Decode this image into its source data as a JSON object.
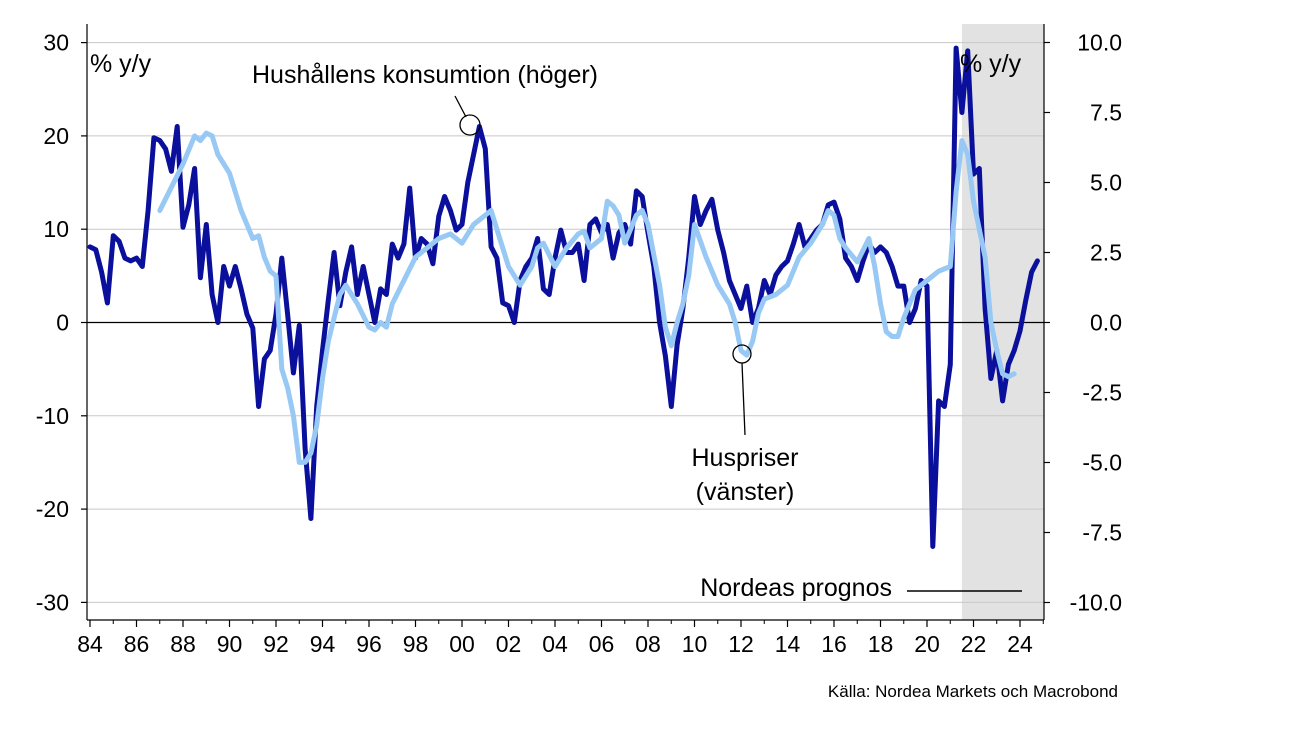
{
  "chart_data": {
    "type": "line",
    "left_axis": {
      "unit_label": "% y/y",
      "ticks": [
        "30",
        "20",
        "10",
        "0",
        "-10",
        "-20",
        "-30"
      ],
      "range": [
        -32,
        32
      ]
    },
    "right_axis": {
      "unit_label": "% y/y",
      "ticks": [
        "10.0",
        "7.5",
        "5.0",
        "2.5",
        "0.0",
        "-2.5",
        "-5.0",
        "-7.5",
        "-10.0"
      ],
      "range": [
        -10.667,
        10.667
      ]
    },
    "x_axis": {
      "ticks": [
        "84",
        "86",
        "88",
        "90",
        "92",
        "94",
        "96",
        "98",
        "00",
        "02",
        "04",
        "06",
        "08",
        "10",
        "12",
        "14",
        "16",
        "18",
        "20",
        "22",
        "24"
      ],
      "range": [
        1984,
        2025
      ]
    },
    "forecast_start": 2021.5,
    "series": [
      {
        "name": "Hushållens konsumtion (höger)",
        "axis": "right",
        "color": "#0a0f9c",
        "points": [
          [
            1984.0,
            2.7
          ],
          [
            1984.25,
            2.6
          ],
          [
            1984.5,
            1.8
          ],
          [
            1984.75,
            0.7
          ],
          [
            1985.0,
            3.1
          ],
          [
            1985.25,
            2.9
          ],
          [
            1985.5,
            2.3
          ],
          [
            1985.75,
            2.2
          ],
          [
            1986.0,
            2.3
          ],
          [
            1986.25,
            2.0
          ],
          [
            1986.5,
            4.0
          ],
          [
            1986.75,
            6.6
          ],
          [
            1987.0,
            6.5
          ],
          [
            1987.25,
            6.2
          ],
          [
            1987.5,
            5.4
          ],
          [
            1987.75,
            7.0
          ],
          [
            1988.0,
            3.4
          ],
          [
            1988.25,
            4.2
          ],
          [
            1988.5,
            5.5
          ],
          [
            1988.75,
            1.6
          ],
          [
            1989.0,
            3.5
          ],
          [
            1989.25,
            1.0
          ],
          [
            1989.5,
            0.0
          ],
          [
            1989.75,
            2.0
          ],
          [
            1990.0,
            1.3
          ],
          [
            1990.25,
            2.0
          ],
          [
            1990.5,
            1.2
          ],
          [
            1990.75,
            0.3
          ],
          [
            1991.0,
            -0.2
          ],
          [
            1991.25,
            -3.0
          ],
          [
            1991.5,
            -1.3
          ],
          [
            1991.75,
            -1.0
          ],
          [
            1992.0,
            0.3
          ],
          [
            1992.25,
            2.3
          ],
          [
            1992.5,
            0.3
          ],
          [
            1992.75,
            -1.8
          ],
          [
            1993.0,
            -0.1
          ],
          [
            1993.25,
            -4.5
          ],
          [
            1993.5,
            -7.0
          ],
          [
            1993.75,
            -3.0
          ],
          [
            1994.0,
            -1.0
          ],
          [
            1994.25,
            0.8
          ],
          [
            1994.5,
            2.5
          ],
          [
            1994.75,
            0.6
          ],
          [
            1995.0,
            1.8
          ],
          [
            1995.25,
            2.7
          ],
          [
            1995.5,
            1.0
          ],
          [
            1995.75,
            2.0
          ],
          [
            1996.0,
            1.0
          ],
          [
            1996.25,
            0.0
          ],
          [
            1996.5,
            1.2
          ],
          [
            1996.75,
            1.0
          ],
          [
            1997.0,
            2.8
          ],
          [
            1997.25,
            2.3
          ],
          [
            1997.5,
            2.8
          ],
          [
            1997.75,
            4.8
          ],
          [
            1998.0,
            2.3
          ],
          [
            1998.25,
            3.0
          ],
          [
            1998.5,
            2.8
          ],
          [
            1998.75,
            2.1
          ],
          [
            1999.0,
            3.8
          ],
          [
            1999.25,
            4.5
          ],
          [
            1999.5,
            4.0
          ],
          [
            1999.75,
            3.3
          ],
          [
            2000.0,
            3.5
          ],
          [
            2000.25,
            5.0
          ],
          [
            2000.5,
            6.0
          ],
          [
            2000.75,
            7.0
          ],
          [
            2001.0,
            6.2
          ],
          [
            2001.25,
            2.7
          ],
          [
            2001.5,
            2.3
          ],
          [
            2001.75,
            0.7
          ],
          [
            2002.0,
            0.6
          ],
          [
            2002.25,
            0.0
          ],
          [
            2002.5,
            1.5
          ],
          [
            2002.75,
            2.0
          ],
          [
            2003.0,
            2.3
          ],
          [
            2003.25,
            3.0
          ],
          [
            2003.5,
            1.2
          ],
          [
            2003.75,
            1.0
          ],
          [
            2004.0,
            2.3
          ],
          [
            2004.25,
            3.3
          ],
          [
            2004.5,
            2.5
          ],
          [
            2004.75,
            2.5
          ],
          [
            2005.0,
            2.8
          ],
          [
            2005.25,
            1.5
          ],
          [
            2005.5,
            3.5
          ],
          [
            2005.75,
            3.7
          ],
          [
            2006.0,
            3.2
          ],
          [
            2006.25,
            3.5
          ],
          [
            2006.5,
            2.3
          ],
          [
            2006.75,
            3.2
          ],
          [
            2007.0,
            3.5
          ],
          [
            2007.25,
            2.8
          ],
          [
            2007.5,
            4.7
          ],
          [
            2007.75,
            4.5
          ],
          [
            2008.0,
            3.2
          ],
          [
            2008.25,
            2.0
          ],
          [
            2008.5,
            0.0
          ],
          [
            2008.75,
            -1.2
          ],
          [
            2009.0,
            -3.0
          ],
          [
            2009.25,
            -0.8
          ],
          [
            2009.5,
            0.5
          ],
          [
            2009.75,
            2.3
          ],
          [
            2010.0,
            4.5
          ],
          [
            2010.25,
            3.5
          ],
          [
            2010.5,
            4.0
          ],
          [
            2010.75,
            4.4
          ],
          [
            2011.0,
            3.3
          ],
          [
            2011.25,
            2.5
          ],
          [
            2011.5,
            1.5
          ],
          [
            2011.75,
            1.0
          ],
          [
            2012.0,
            0.5
          ],
          [
            2012.25,
            1.3
          ],
          [
            2012.5,
            0.0
          ],
          [
            2012.75,
            0.5
          ],
          [
            2013.0,
            1.5
          ],
          [
            2013.25,
            1.0
          ],
          [
            2013.5,
            1.7
          ],
          [
            2013.75,
            2.0
          ],
          [
            2014.0,
            2.2
          ],
          [
            2014.25,
            2.8
          ],
          [
            2014.5,
            3.5
          ],
          [
            2014.75,
            2.7
          ],
          [
            2015.0,
            3.0
          ],
          [
            2015.25,
            3.3
          ],
          [
            2015.5,
            3.5
          ],
          [
            2015.75,
            4.2
          ],
          [
            2016.0,
            4.3
          ],
          [
            2016.25,
            3.7
          ],
          [
            2016.5,
            2.3
          ],
          [
            2016.75,
            2.0
          ],
          [
            2017.0,
            1.5
          ],
          [
            2017.25,
            2.2
          ],
          [
            2017.5,
            2.8
          ],
          [
            2017.75,
            2.5
          ],
          [
            2018.0,
            2.7
          ],
          [
            2018.25,
            2.5
          ],
          [
            2018.5,
            2.0
          ],
          [
            2018.75,
            1.3
          ],
          [
            2019.0,
            1.3
          ],
          [
            2019.25,
            0.0
          ],
          [
            2019.5,
            0.5
          ],
          [
            2019.75,
            1.5
          ],
          [
            2020.0,
            1.3
          ],
          [
            2020.25,
            -8.0
          ],
          [
            2020.5,
            -2.8
          ],
          [
            2020.75,
            -3.0
          ],
          [
            2021.0,
            -1.5
          ],
          [
            2021.25,
            9.8
          ],
          [
            2021.5,
            7.5
          ],
          [
            2021.75,
            9.7
          ],
          [
            2022.0,
            5.3
          ],
          [
            2022.25,
            5.5
          ],
          [
            2022.5,
            0.5
          ],
          [
            2022.75,
            -2.0
          ],
          [
            2023.0,
            -1.0
          ],
          [
            2023.25,
            -2.8
          ],
          [
            2023.5,
            -1.5
          ],
          [
            2023.75,
            -1.0
          ],
          [
            2024.0,
            -0.3
          ],
          [
            2024.25,
            0.8
          ],
          [
            2024.5,
            1.8
          ],
          [
            2024.75,
            2.2
          ]
        ]
      },
      {
        "name": "Huspriser (vänster)",
        "axis": "left",
        "color": "#98c8f4",
        "points": [
          [
            1987.0,
            12.0
          ],
          [
            1987.5,
            14.5
          ],
          [
            1988.0,
            17.0
          ],
          [
            1988.5,
            20.0
          ],
          [
            1988.75,
            19.5
          ],
          [
            1989.0,
            20.3
          ],
          [
            1989.25,
            20.0
          ],
          [
            1989.5,
            18.0
          ],
          [
            1990.0,
            16.0
          ],
          [
            1990.5,
            12.0
          ],
          [
            1991.0,
            9.0
          ],
          [
            1991.25,
            9.3
          ],
          [
            1991.5,
            7.0
          ],
          [
            1991.75,
            5.5
          ],
          [
            1992.0,
            5.0
          ],
          [
            1992.25,
            -5.0
          ],
          [
            1992.5,
            -7.0
          ],
          [
            1992.75,
            -10.0
          ],
          [
            1993.0,
            -15.0
          ],
          [
            1993.25,
            -15.0
          ],
          [
            1993.5,
            -14.0
          ],
          [
            1993.75,
            -11.0
          ],
          [
            1994.0,
            -6.0
          ],
          [
            1994.25,
            -2.0
          ],
          [
            1994.5,
            0.5
          ],
          [
            1994.75,
            3.0
          ],
          [
            1995.0,
            4.0
          ],
          [
            1995.5,
            2.0
          ],
          [
            1996.0,
            -0.5
          ],
          [
            1996.25,
            -0.8
          ],
          [
            1996.5,
            0.0
          ],
          [
            1996.75,
            -0.5
          ],
          [
            1997.0,
            2.0
          ],
          [
            1997.5,
            4.5
          ],
          [
            1998.0,
            7.0
          ],
          [
            1998.5,
            8.0
          ],
          [
            1999.0,
            9.0
          ],
          [
            1999.5,
            9.5
          ],
          [
            2000.0,
            8.5
          ],
          [
            2000.5,
            10.5
          ],
          [
            2001.0,
            11.5
          ],
          [
            2001.25,
            12.0
          ],
          [
            2001.5,
            10.0
          ],
          [
            2002.0,
            6.0
          ],
          [
            2002.5,
            4.0
          ],
          [
            2003.0,
            6.0
          ],
          [
            2003.25,
            8.0
          ],
          [
            2003.5,
            8.5
          ],
          [
            2004.0,
            6.0
          ],
          [
            2004.5,
            8.0
          ],
          [
            2005.0,
            9.5
          ],
          [
            2005.25,
            9.8
          ],
          [
            2005.5,
            8.0
          ],
          [
            2006.0,
            9.0
          ],
          [
            2006.25,
            13.0
          ],
          [
            2006.5,
            12.5
          ],
          [
            2006.75,
            11.5
          ],
          [
            2007.0,
            8.5
          ],
          [
            2007.5,
            11.5
          ],
          [
            2007.75,
            12.0
          ],
          [
            2008.0,
            10.5
          ],
          [
            2008.5,
            4.0
          ],
          [
            2008.75,
            -0.5
          ],
          [
            2009.0,
            -2.5
          ],
          [
            2009.25,
            0.0
          ],
          [
            2009.5,
            2.0
          ],
          [
            2009.75,
            5.0
          ],
          [
            2010.0,
            10.5
          ],
          [
            2010.5,
            7.0
          ],
          [
            2011.0,
            4.0
          ],
          [
            2011.5,
            2.0
          ],
          [
            2011.75,
            0.0
          ],
          [
            2012.0,
            -3.0
          ],
          [
            2012.25,
            -3.5
          ],
          [
            2012.5,
            -2.0
          ],
          [
            2012.75,
            1.0
          ],
          [
            2013.0,
            2.5
          ],
          [
            2013.5,
            3.0
          ],
          [
            2014.0,
            4.0
          ],
          [
            2014.5,
            7.0
          ],
          [
            2015.0,
            8.5
          ],
          [
            2015.5,
            10.5
          ],
          [
            2015.75,
            12.0
          ],
          [
            2016.0,
            11.5
          ],
          [
            2016.25,
            9.0
          ],
          [
            2016.5,
            8.0
          ],
          [
            2017.0,
            6.5
          ],
          [
            2017.5,
            9.0
          ],
          [
            2017.75,
            6.0
          ],
          [
            2018.0,
            2.0
          ],
          [
            2018.25,
            -1.0
          ],
          [
            2018.5,
            -1.5
          ],
          [
            2018.75,
            -1.5
          ],
          [
            2019.0,
            0.5
          ],
          [
            2019.5,
            3.5
          ],
          [
            2020.0,
            4.5
          ],
          [
            2020.5,
            5.5
          ],
          [
            2021.0,
            6.0
          ],
          [
            2021.25,
            14.0
          ],
          [
            2021.5,
            19.5
          ],
          [
            2021.75,
            18.0
          ],
          [
            2022.0,
            13.0
          ],
          [
            2022.5,
            7.0
          ],
          [
            2022.75,
            0.0
          ],
          [
            2023.0,
            -3.0
          ],
          [
            2023.25,
            -5.5
          ],
          [
            2023.5,
            -5.8
          ],
          [
            2023.75,
            -5.5
          ]
        ]
      }
    ],
    "annotations": {
      "consumption_label": "Hushållens konsumtion (höger)",
      "houseprice_label_line1": "Huspriser",
      "houseprice_label_line2": "(vänster)",
      "forecast_label": "Nordeas prognos"
    },
    "source": "Källa: Nordea Markets och Macrobond"
  }
}
